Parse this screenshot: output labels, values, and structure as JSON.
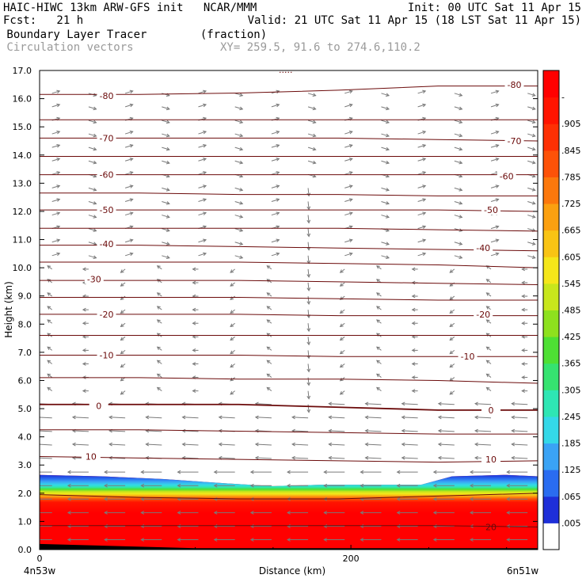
{
  "header": {
    "line1_left": "HAIC-HIWC 13km ARW-GFS init   NCAR/MMM",
    "line1_right": "Init: 00 UTC Sat 11 Apr 15",
    "line2_left": "Fcst:   21 h",
    "line2_right": "Valid: 21 UTC Sat 11 Apr 15 (18 LST Sat 11 Apr 15)",
    "line3_left": " Boundary Layer Tracer        (fraction)",
    "line4_left": " Circulation vectors",
    "line4_right": "XY= 259.5, 91.6 to 274.6,110.2",
    "top_marker": "....."
  },
  "colors": {
    "contour": "#6b0a0a",
    "vector": "#7a7a7a",
    "gray_text": "#9a9a9a"
  },
  "chart_data": {
    "type": "heatmap",
    "xlabel": "Distance (km)",
    "ylabel": "Height (km)",
    "xlim": [
      0,
      320
    ],
    "ylim": [
      0.0,
      17.0
    ],
    "x_ticks": [
      {
        "value": 0,
        "label": "0"
      },
      {
        "value": 200,
        "label": "200"
      }
    ],
    "x_end_labels": {
      "left": "4n53w",
      "right": "6n51w"
    },
    "y_ticks": [
      "0.0",
      "1.0",
      "2.0",
      "3.0",
      "4.0",
      "5.0",
      "6.0",
      "7.0",
      "8.0",
      "9.0",
      "10.0",
      "11.0",
      "12.0",
      "13.0",
      "14.0",
      "15.0",
      "16.0",
      "17.0"
    ],
    "colorbar": {
      "labels": [
        ".005",
        ".065",
        ".125",
        ".185",
        ".245",
        ".305",
        ".365",
        ".425",
        ".485",
        ".545",
        ".605",
        ".665",
        ".725",
        ".785",
        ".845",
        ".905",
        "-"
      ],
      "colors": [
        "#ffffff",
        "#1e2fd8",
        "#2a6cf0",
        "#3aa3f5",
        "#34d8e8",
        "#2ee6b4",
        "#35e370",
        "#4ee034",
        "#8ee11e",
        "#c8e61c",
        "#f5e61a",
        "#f9c414",
        "#fba010",
        "#fc780c",
        "#fd5208",
        "#fe3004",
        "#ff1400",
        "#ff0000"
      ]
    },
    "field_description": "boundary layer tracer fraction, near 1 below ~1.5 km, decreasing to ~0 by ~2.6 km",
    "tracer_top_km": [
      [
        0,
        2.65
      ],
      [
        40,
        2.6
      ],
      [
        80,
        2.5
      ],
      [
        120,
        2.35
      ],
      [
        150,
        2.25
      ],
      [
        180,
        2.3
      ],
      [
        220,
        2.3
      ],
      [
        245,
        2.3
      ],
      [
        265,
        2.6
      ],
      [
        300,
        2.65
      ],
      [
        320,
        2.6
      ]
    ],
    "temperature_contours": [
      {
        "label": "-80",
        "y": [
          16.15,
          16.15,
          16.2,
          16.3,
          16.45,
          16.45
        ],
        "label_at": [
          {
            "x": 43,
            "y": 16.1
          },
          {
            "x": 305,
            "y": 16.5
          }
        ]
      },
      {
        "label": "",
        "y": [
          15.25,
          15.25,
          15.25,
          15.25,
          15.25,
          15.25
        ]
      },
      {
        "label": "-70",
        "y": [
          14.6,
          14.6,
          14.6,
          14.6,
          14.55,
          14.5
        ],
        "label_at": [
          {
            "x": 43,
            "y": 14.6
          },
          {
            "x": 305,
            "y": 14.5
          }
        ]
      },
      {
        "label": "",
        "y": [
          13.95,
          13.95,
          13.95,
          13.95,
          13.95,
          13.95
        ]
      },
      {
        "label": "-60",
        "y": [
          13.3,
          13.3,
          13.3,
          13.3,
          13.3,
          13.3
        ],
        "label_at": [
          {
            "x": 43,
            "y": 13.3
          },
          {
            "x": 300,
            "y": 13.25
          }
        ]
      },
      {
        "label": "",
        "y": [
          12.65,
          12.65,
          12.6,
          12.6,
          12.55,
          12.55
        ]
      },
      {
        "label": "-50",
        "y": [
          12.05,
          12.05,
          12.05,
          12.05,
          12.05,
          12.0
        ],
        "label_at": [
          {
            "x": 43,
            "y": 12.05
          },
          {
            "x": 290,
            "y": 12.05
          }
        ]
      },
      {
        "label": "",
        "y": [
          11.4,
          11.4,
          11.4,
          11.4,
          11.35,
          11.3
        ]
      },
      {
        "label": "-40",
        "y": [
          10.8,
          10.8,
          10.75,
          10.7,
          10.65,
          10.6
        ],
        "label_at": [
          {
            "x": 43,
            "y": 10.85
          },
          {
            "x": 285,
            "y": 10.7
          }
        ]
      },
      {
        "label": "",
        "y": [
          10.2,
          10.2,
          10.2,
          10.15,
          10.1,
          10.0
        ]
      },
      {
        "label": "-30",
        "y": [
          9.55,
          9.55,
          9.55,
          9.5,
          9.45,
          9.4
        ],
        "label_at": [
          {
            "x": 35,
            "y": 9.6
          }
        ]
      },
      {
        "label": "",
        "y": [
          8.95,
          8.95,
          8.95,
          8.9,
          8.85,
          8.85
        ]
      },
      {
        "label": "-20",
        "y": [
          8.35,
          8.35,
          8.35,
          8.3,
          8.3,
          8.3
        ],
        "label_at": [
          {
            "x": 43,
            "y": 8.35
          },
          {
            "x": 285,
            "y": 8.35
          }
        ]
      },
      {
        "label": "",
        "y": [
          7.6,
          7.6,
          7.6,
          7.6,
          7.6,
          7.6
        ]
      },
      {
        "label": "-10",
        "y": [
          6.9,
          6.9,
          6.9,
          6.85,
          6.85,
          6.85
        ],
        "label_at": [
          {
            "x": 43,
            "y": 6.9
          },
          {
            "x": 275,
            "y": 6.85
          }
        ]
      },
      {
        "label": "",
        "y": [
          6.1,
          6.1,
          6.05,
          6.05,
          6.0,
          5.9
        ]
      },
      {
        "label": "0",
        "y": [
          5.15,
          5.15,
          5.15,
          5.05,
          4.95,
          4.95
        ],
        "label_at": [
          {
            "x": 38,
            "y": 5.1
          },
          {
            "x": 290,
            "y": 4.95
          }
        ]
      },
      {
        "label": "",
        "y": [
          4.25,
          4.25,
          4.2,
          4.15,
          4.1,
          4.1
        ]
      },
      {
        "label": "10",
        "y": [
          3.3,
          3.25,
          3.2,
          3.15,
          3.1,
          3.15
        ],
        "label_at": [
          {
            "x": 33,
            "y": 3.3
          },
          {
            "x": 290,
            "y": 3.2
          }
        ]
      },
      {
        "label": "",
        "y": [
          1.95,
          1.85,
          1.8,
          1.8,
          1.9,
          2.0
        ]
      },
      {
        "label": "20",
        "y": [
          0.85,
          0.85,
          0.85,
          0.85,
          0.85,
          0.8
        ],
        "label_at": [
          {
            "x": 290,
            "y": 0.8
          }
        ]
      }
    ],
    "contour_x": [
      0,
      64,
      128,
      192,
      256,
      320
    ]
  }
}
